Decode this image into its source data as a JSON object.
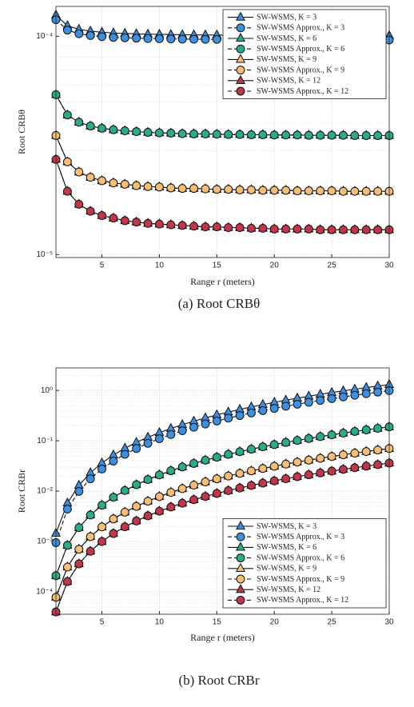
{
  "chart_data": [
    {
      "type": "line",
      "caption": "(a) Root CRBθ",
      "xlabel": "Range r (meters)",
      "ylabel": "Root CRBθ",
      "log_y": true,
      "grid": true,
      "legend": "upper right",
      "x": [
        1,
        2,
        3,
        4,
        5,
        6,
        7,
        8,
        9,
        10,
        11,
        12,
        13,
        14,
        15,
        16,
        17,
        18,
        19,
        20,
        21,
        22,
        23,
        24,
        25,
        26,
        27,
        28,
        29,
        30
      ],
      "xlim": [
        1,
        30
      ],
      "xticks": [
        5,
        10,
        15,
        20,
        25,
        30
      ],
      "ylim": [
        9.7e-06,
        0.000137
      ],
      "yticks": [
        {
          "value": 1e-05,
          "label": "10⁻⁵"
        },
        {
          "value": 0.0001,
          "label": "10⁻⁴"
        }
      ],
      "series": [
        {
          "name": "SW-WSMS, K = 3",
          "color": "#3d8fe0",
          "marker": "triangle",
          "linestyle": "solid",
          "values": [
            0.000125,
            0.0001117,
            0.0001075,
            0.0001055,
            0.0001043,
            0.0001035,
            0.000103,
            0.0001026,
            0.0001022,
            0.000102,
            0.0001018,
            0.0001016,
            0.0001015,
            0.0001014,
            0.0001013,
            0.0001012,
            0.0001011,
            0.000101,
            0.000101,
            0.0001009,
            0.0001009,
            0.0001008,
            0.0001008,
            0.0001008,
            0.0001007,
            0.0001007,
            0.0001007,
            0.0001006,
            0.0001006,
            0.0001006
          ]
        },
        {
          "name": "SW-WSMS Approx., K = 3",
          "color": "#3d8fe0",
          "marker": "circle",
          "linestyle": "dashed",
          "values": [
            0.000119,
            0.0001067,
            0.0001027,
            0.0001008,
            9.96e-05,
            9.88e-05,
            9.84e-05,
            9.8e-05,
            9.76e-05,
            9.74e-05,
            9.72e-05,
            9.7e-05,
            9.69e-05,
            9.68e-05,
            9.67e-05,
            9.66e-05,
            9.66e-05,
            9.65e-05,
            9.65e-05,
            9.64e-05,
            9.64e-05,
            9.63e-05,
            9.63e-05,
            9.63e-05,
            9.62e-05,
            9.62e-05,
            9.62e-05,
            9.61e-05,
            9.61e-05,
            9.61e-05
          ]
        },
        {
          "name": "SW-WSMS, K = 6",
          "color": "#2bab8c",
          "marker": "triangle",
          "linestyle": "solid",
          "values": [
            5.4e-05,
            4.36e-05,
            4.04e-05,
            3.88e-05,
            3.79e-05,
            3.73e-05,
            3.69e-05,
            3.66e-05,
            3.63e-05,
            3.61e-05,
            3.6e-05,
            3.58e-05,
            3.57e-05,
            3.57e-05,
            3.56e-05,
            3.55e-05,
            3.55e-05,
            3.54e-05,
            3.54e-05,
            3.53e-05,
            3.53e-05,
            3.53e-05,
            3.52e-05,
            3.52e-05,
            3.52e-05,
            3.52e-05,
            3.51e-05,
            3.51e-05,
            3.51e-05,
            3.51e-05
          ]
        },
        {
          "name": "SW-WSMS Approx., K = 6",
          "color": "#2bab8c",
          "marker": "circle",
          "linestyle": "dashed",
          "values": [
            5.4e-05,
            4.36e-05,
            4.04e-05,
            3.88e-05,
            3.79e-05,
            3.73e-05,
            3.69e-05,
            3.66e-05,
            3.63e-05,
            3.61e-05,
            3.6e-05,
            3.58e-05,
            3.57e-05,
            3.57e-05,
            3.56e-05,
            3.55e-05,
            3.55e-05,
            3.54e-05,
            3.54e-05,
            3.53e-05,
            3.53e-05,
            3.53e-05,
            3.52e-05,
            3.52e-05,
            3.52e-05,
            3.52e-05,
            3.51e-05,
            3.51e-05,
            3.51e-05,
            3.51e-05
          ]
        },
        {
          "name": "SW-WSMS, K = 9",
          "color": "#f6bd75",
          "marker": "triangle",
          "linestyle": "solid",
          "values": [
            3.51e-05,
            2.66e-05,
            2.39e-05,
            2.26e-05,
            2.18e-05,
            2.13e-05,
            2.1e-05,
            2.07e-05,
            2.05e-05,
            2.04e-05,
            2.02e-05,
            2.01e-05,
            2.01e-05,
            2e-05,
            1.99e-05,
            1.99e-05,
            1.98e-05,
            1.98e-05,
            1.97e-05,
            1.97e-05,
            1.97e-05,
            1.96e-05,
            1.96e-05,
            1.96e-05,
            1.96e-05,
            1.95e-05,
            1.95e-05,
            1.95e-05,
            1.95e-05,
            1.95e-05
          ]
        },
        {
          "name": "SW-WSMS Approx., K = 9",
          "color": "#f6bd75",
          "marker": "circle",
          "linestyle": "dashed",
          "values": [
            3.51e-05,
            2.66e-05,
            2.39e-05,
            2.26e-05,
            2.18e-05,
            2.13e-05,
            2.1e-05,
            2.07e-05,
            2.05e-05,
            2.04e-05,
            2.02e-05,
            2.01e-05,
            2.01e-05,
            2e-05,
            1.99e-05,
            1.99e-05,
            1.98e-05,
            1.98e-05,
            1.97e-05,
            1.97e-05,
            1.97e-05,
            1.96e-05,
            1.96e-05,
            1.96e-05,
            1.96e-05,
            1.95e-05,
            1.95e-05,
            1.95e-05,
            1.95e-05,
            1.95e-05
          ]
        },
        {
          "name": "SW-WSMS, K = 12",
          "color": "#c2364a",
          "marker": "triangle",
          "linestyle": "solid",
          "values": [
            2.73e-05,
            1.95e-05,
            1.7e-05,
            1.58e-05,
            1.51e-05,
            1.47e-05,
            1.43e-05,
            1.41e-05,
            1.39e-05,
            1.38e-05,
            1.37e-05,
            1.36e-05,
            1.35e-05,
            1.34e-05,
            1.34e-05,
            1.33e-05,
            1.33e-05,
            1.32e-05,
            1.32e-05,
            1.31e-05,
            1.31e-05,
            1.31e-05,
            1.31e-05,
            1.3e-05,
            1.3e-05,
            1.3e-05,
            1.3e-05,
            1.3e-05,
            1.3e-05,
            1.3e-05
          ]
        },
        {
          "name": "SW-WSMS Approx., K = 12",
          "color": "#c2364a",
          "marker": "circle",
          "linestyle": "dashed",
          "values": [
            2.73e-05,
            1.95e-05,
            1.7e-05,
            1.58e-05,
            1.51e-05,
            1.47e-05,
            1.43e-05,
            1.41e-05,
            1.39e-05,
            1.38e-05,
            1.37e-05,
            1.36e-05,
            1.35e-05,
            1.34e-05,
            1.34e-05,
            1.33e-05,
            1.33e-05,
            1.32e-05,
            1.32e-05,
            1.31e-05,
            1.31e-05,
            1.31e-05,
            1.31e-05,
            1.3e-05,
            1.3e-05,
            1.3e-05,
            1.3e-05,
            1.3e-05,
            1.3e-05,
            1.3e-05
          ]
        }
      ]
    },
    {
      "type": "line",
      "caption": "(b) Root CRBr",
      "xlabel": "Range r (meters)",
      "ylabel": "Root CRBr",
      "log_y": true,
      "grid": true,
      "legend": "lower right",
      "x": [
        1,
        2,
        3,
        4,
        5,
        6,
        7,
        8,
        9,
        10,
        11,
        12,
        13,
        14,
        15,
        16,
        17,
        18,
        19,
        20,
        21,
        22,
        23,
        24,
        25,
        26,
        27,
        28,
        29,
        30
      ],
      "xlim": [
        1,
        30
      ],
      "xticks": [
        5,
        10,
        15,
        20,
        25,
        30
      ],
      "ylim": [
        3.6e-05,
        2.8
      ],
      "yticks": [
        {
          "value": 0.0001,
          "label": "10⁻⁴"
        },
        {
          "value": 0.001,
          "label": "10⁻³"
        },
        {
          "value": 0.01,
          "label": "10⁻²"
        },
        {
          "value": 0.1,
          "label": "10⁻¹"
        },
        {
          "value": 1,
          "label": "10⁰"
        }
      ],
      "series": [
        {
          "name": "SW-WSMS, K = 3",
          "color": "#3d8fe0",
          "marker": "triangle",
          "linestyle": "solid",
          "values": [
            0.00145,
            0.0058,
            0.01305,
            0.0232,
            0.03625,
            0.0522,
            0.07105,
            0.0928,
            0.11745,
            0.145,
            0.17545,
            0.2088,
            0.24505,
            0.2842,
            0.32625,
            0.3712,
            0.41905,
            0.4698,
            0.52345,
            0.58,
            0.63945,
            0.7018,
            0.76705,
            0.8352,
            0.90625,
            0.9802,
            1.05705,
            1.1368,
            1.21945,
            1.305
          ]
        },
        {
          "name": "SW-WSMS Approx., K = 3",
          "color": "#3d8fe0",
          "marker": "circle",
          "linestyle": "dashed",
          "values": [
            0.00095,
            0.0044,
            0.0099,
            0.0176,
            0.0275,
            0.0396,
            0.0539,
            0.0704,
            0.0891,
            0.11,
            0.1331,
            0.1584,
            0.1859,
            0.2156,
            0.2475,
            0.2816,
            0.3179,
            0.3564,
            0.3971,
            0.44,
            0.4851,
            0.5324,
            0.5819,
            0.6336,
            0.6875,
            0.7436,
            0.8019,
            0.8624,
            0.9251,
            0.99
          ]
        },
        {
          "name": "SW-WSMS, K = 6",
          "color": "#2bab8c",
          "marker": "triangle",
          "linestyle": "solid",
          "values": [
            0.00021,
            0.00084,
            0.00189,
            0.00336,
            0.00525,
            0.00756,
            0.01029,
            0.01344,
            0.01701,
            0.021,
            0.02541,
            0.03024,
            0.03549,
            0.04116,
            0.04725,
            0.05376,
            0.06069,
            0.06804,
            0.07581,
            0.084,
            0.09261,
            0.10164,
            0.11109,
            0.12096,
            0.13125,
            0.14196,
            0.15309,
            0.16464,
            0.17661,
            0.189
          ]
        },
        {
          "name": "SW-WSMS Approx., K = 6",
          "color": "#2bab8c",
          "marker": "circle",
          "linestyle": "dashed",
          "values": [
            0.00021,
            0.00084,
            0.00189,
            0.00336,
            0.00525,
            0.00756,
            0.01029,
            0.01344,
            0.01701,
            0.021,
            0.02541,
            0.03024,
            0.03549,
            0.04116,
            0.04725,
            0.05376,
            0.06069,
            0.06804,
            0.07581,
            0.084,
            0.09261,
            0.10164,
            0.11109,
            0.12096,
            0.13125,
            0.14196,
            0.15309,
            0.16464,
            0.17661,
            0.189
          ]
        },
        {
          "name": "SW-WSMS, K = 9",
          "color": "#f6bd75",
          "marker": "triangle",
          "linestyle": "solid",
          "values": [
            7.8e-05,
            0.000312,
            0.000702,
            0.001248,
            0.00195,
            0.002808,
            0.003822,
            0.004992,
            0.006318,
            0.0078,
            0.009438,
            0.011232,
            0.013182,
            0.015288,
            0.01755,
            0.019968,
            0.022542,
            0.025272,
            0.028158,
            0.0312,
            0.034398,
            0.037752,
            0.041262,
            0.044928,
            0.04875,
            0.052728,
            0.056862,
            0.061152,
            0.065598,
            0.0702
          ]
        },
        {
          "name": "SW-WSMS Approx., K = 9",
          "color": "#f6bd75",
          "marker": "circle",
          "linestyle": "dashed",
          "values": [
            7.8e-05,
            0.000312,
            0.000702,
            0.001248,
            0.00195,
            0.002808,
            0.003822,
            0.004992,
            0.006318,
            0.0078,
            0.009438,
            0.011232,
            0.013182,
            0.015288,
            0.01755,
            0.019968,
            0.022542,
            0.025272,
            0.028158,
            0.0312,
            0.034398,
            0.037752,
            0.041262,
            0.044928,
            0.04875,
            0.052728,
            0.056862,
            0.061152,
            0.065598,
            0.0702
          ]
        },
        {
          "name": "SW-WSMS, K = 12",
          "color": "#c2364a",
          "marker": "triangle",
          "linestyle": "solid",
          "values": [
            4e-05,
            0.00016,
            0.00036,
            0.00064,
            0.001,
            0.00144,
            0.00196,
            0.00256,
            0.00324,
            0.004,
            0.00484,
            0.00576,
            0.00676,
            0.00784,
            0.009,
            0.01024,
            0.01156,
            0.01296,
            0.01444,
            0.016,
            0.01764,
            0.01936,
            0.02116,
            0.02304,
            0.025,
            0.02704,
            0.02916,
            0.03136,
            0.03364,
            0.036
          ]
        },
        {
          "name": "SW-WSMS Approx., K = 12",
          "color": "#c2364a",
          "marker": "circle",
          "linestyle": "dashed",
          "values": [
            4e-05,
            0.00016,
            0.00036,
            0.00064,
            0.001,
            0.00144,
            0.00196,
            0.00256,
            0.00324,
            0.004,
            0.00484,
            0.00576,
            0.00676,
            0.00784,
            0.009,
            0.01024,
            0.01156,
            0.01296,
            0.01444,
            0.016,
            0.01764,
            0.01936,
            0.02116,
            0.02304,
            0.025,
            0.02704,
            0.02916,
            0.03136,
            0.03364,
            0.036
          ]
        }
      ]
    }
  ]
}
